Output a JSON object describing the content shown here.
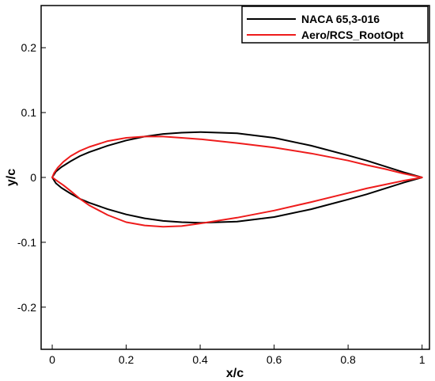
{
  "chart_data": {
    "type": "line",
    "title": "",
    "xlabel": "x/c",
    "ylabel": "y/c",
    "xlim": [
      -0.03,
      1.02
    ],
    "ylim": [
      -0.265,
      0.265
    ],
    "x_ticks": [
      0,
      0.2,
      0.4,
      0.6,
      0.8,
      1
    ],
    "x_tick_labels": [
      "0",
      "0.2",
      "0.4",
      "0.6",
      "0.8",
      "1"
    ],
    "y_ticks": [
      -0.2,
      -0.1,
      0,
      0.1,
      0.2
    ],
    "y_tick_labels": [
      "-0.2",
      "-0.1",
      "0",
      "0.1",
      "0.2"
    ],
    "grid": false,
    "legend_position": "top-right",
    "series": [
      {
        "name": "NACA 65,3-016",
        "color": "#000000",
        "x": [
          1.0,
          0.95,
          0.9,
          0.85,
          0.8,
          0.7,
          0.6,
          0.5,
          0.4,
          0.35,
          0.3,
          0.25,
          0.2,
          0.15,
          0.1,
          0.075,
          0.05,
          0.025,
          0.01,
          0.0,
          0.01,
          0.025,
          0.05,
          0.075,
          0.1,
          0.15,
          0.2,
          0.25,
          0.3,
          0.35,
          0.4,
          0.5,
          0.6,
          0.7,
          0.8,
          0.85,
          0.9,
          0.95,
          1.0
        ],
        "y": [
          0.0,
          0.008,
          0.017,
          0.026,
          0.034,
          0.049,
          0.061,
          0.068,
          0.07,
          0.069,
          0.067,
          0.063,
          0.057,
          0.049,
          0.039,
          0.033,
          0.025,
          0.016,
          0.009,
          0.0,
          -0.009,
          -0.016,
          -0.025,
          -0.033,
          -0.039,
          -0.049,
          -0.057,
          -0.063,
          -0.067,
          -0.069,
          -0.07,
          -0.068,
          -0.061,
          -0.049,
          -0.034,
          -0.026,
          -0.017,
          -0.008,
          0.0
        ]
      },
      {
        "name": "Aero/RCS_RootOpt",
        "color": "#ee1c1c",
        "x": [
          1.0,
          0.95,
          0.9,
          0.85,
          0.8,
          0.7,
          0.6,
          0.5,
          0.4,
          0.35,
          0.3,
          0.25,
          0.2,
          0.15,
          0.1,
          0.075,
          0.05,
          0.03,
          0.015,
          0.005,
          0.0,
          0.005,
          0.015,
          0.03,
          0.05,
          0.075,
          0.1,
          0.15,
          0.2,
          0.25,
          0.3,
          0.35,
          0.4,
          0.5,
          0.6,
          0.7,
          0.8,
          0.85,
          0.9,
          0.95,
          1.0
        ],
        "y": [
          0.0,
          0.006,
          0.013,
          0.019,
          0.026,
          0.037,
          0.046,
          0.053,
          0.059,
          0.061,
          0.063,
          0.063,
          0.061,
          0.056,
          0.047,
          0.041,
          0.033,
          0.024,
          0.015,
          0.007,
          0.0,
          -0.002,
          -0.006,
          -0.012,
          -0.021,
          -0.033,
          -0.043,
          -0.058,
          -0.069,
          -0.074,
          -0.076,
          -0.075,
          -0.071,
          -0.062,
          -0.051,
          -0.038,
          -0.024,
          -0.017,
          -0.011,
          -0.005,
          0.0
        ]
      }
    ]
  }
}
